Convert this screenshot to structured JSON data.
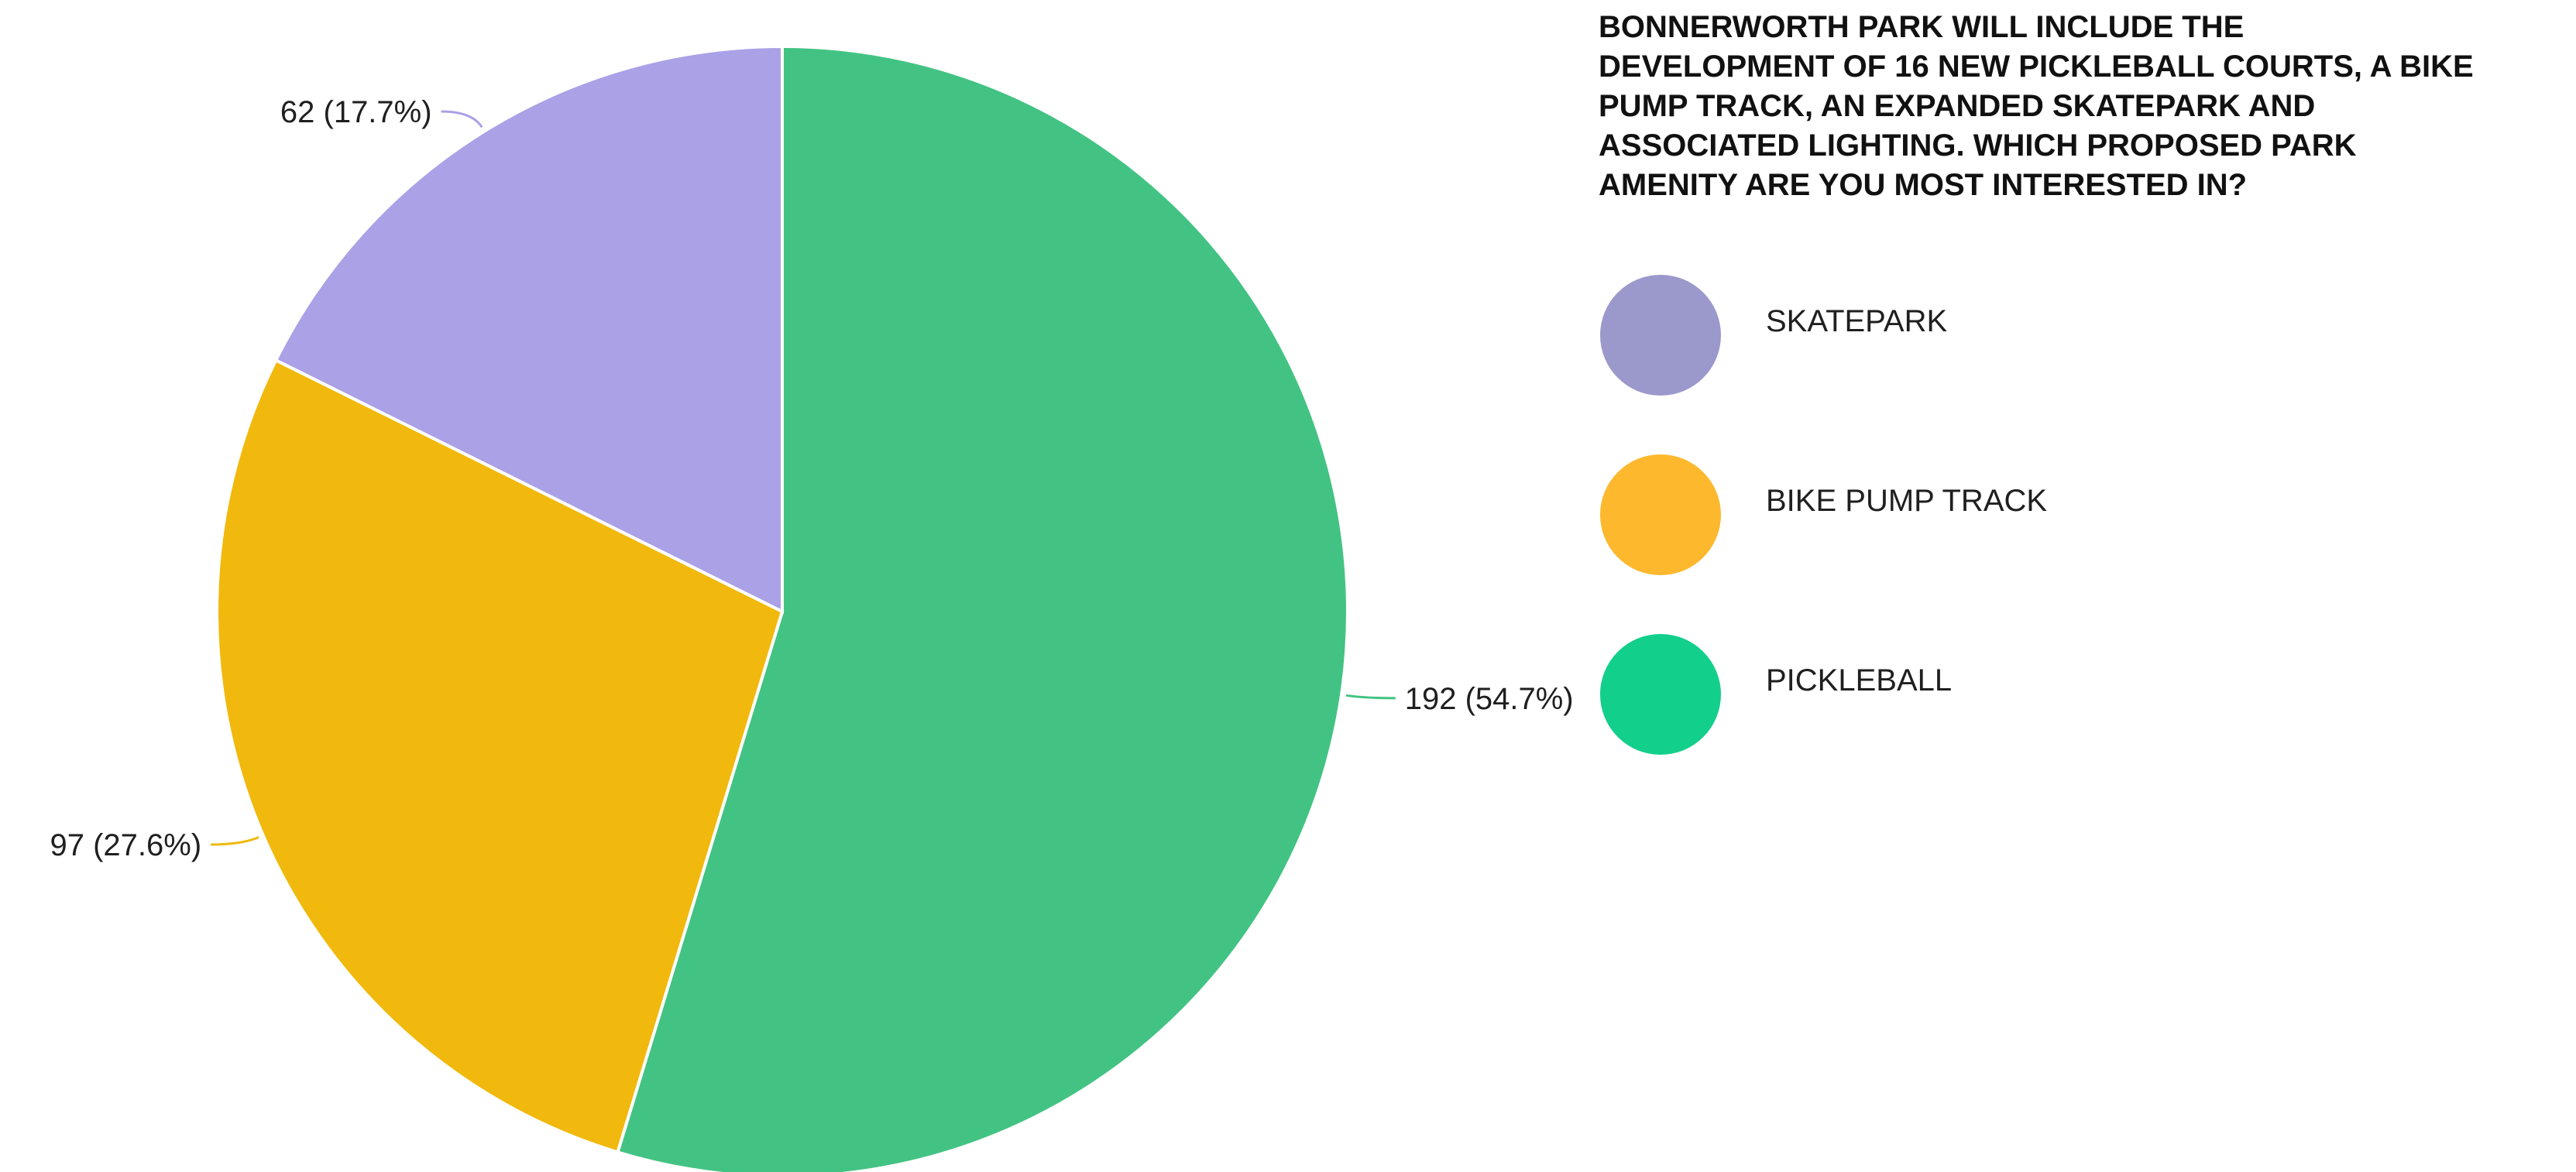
{
  "chart_data": {
    "type": "pie",
    "title_lines": [
      "BONNERWORTH PARK WILL INCLUDE THE",
      "DEVELOPMENT OF 16 NEW PICKLEBALL COURTS, A BIKE",
      "PUMP TRACK, AN EXPANDED SKATEPARK AND",
      "ASSOCIATED LIGHTING. WHICH PROPOSED PARK",
      "AMENITY ARE YOU MOST INTERESTED IN?"
    ],
    "slices": [
      {
        "name": "PICKLEBALL",
        "value": 192,
        "percent": 54.7,
        "label": "192 (54.7%)",
        "color": "#43c383",
        "legend_color": "#13cf8c"
      },
      {
        "name": "BIKE PUMP TRACK",
        "value": 97,
        "percent": 27.6,
        "label": "97 (27.6%)",
        "color": "#f1b90d",
        "legend_color": "#fdb82e"
      },
      {
        "name": "SKATEPARK",
        "value": 62,
        "percent": 17.7,
        "label": "62 (17.7%)",
        "color": "#aaa1e6",
        "legend_color": "#9b98cc"
      }
    ],
    "legend": {
      "position": "right",
      "order": [
        "SKATEPARK",
        "BIKE PUMP TRACK",
        "PICKLEBALL"
      ]
    },
    "start_angle": "12 o'clock",
    "direction": "clockwise"
  }
}
